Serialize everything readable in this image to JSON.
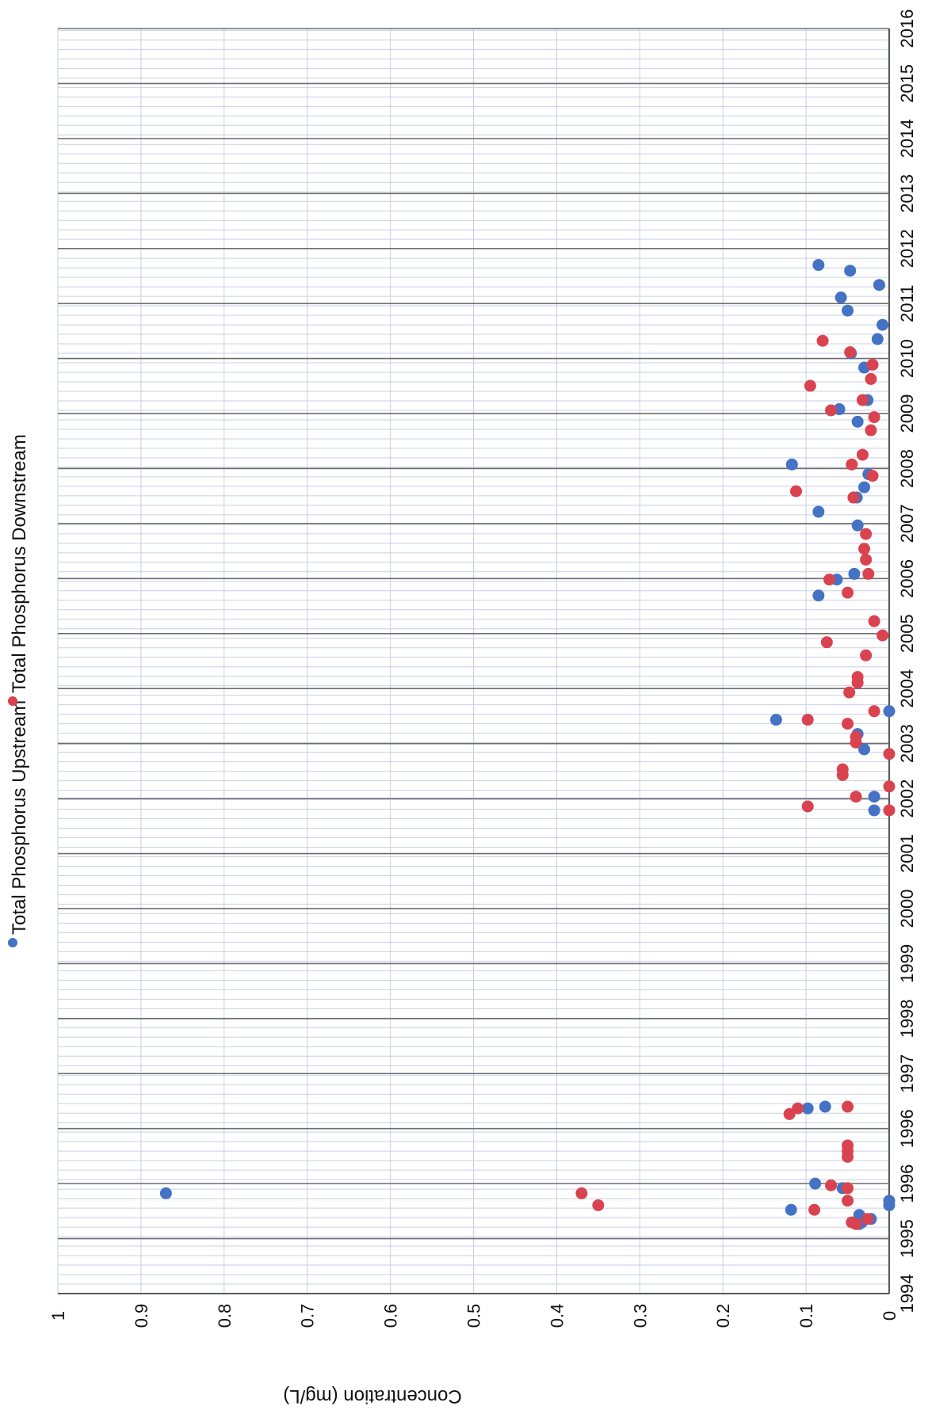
{
  "chart_data": {
    "type": "scatter",
    "orientation": "rotated-90",
    "title": "",
    "xlabel": "",
    "ylabel": "Concentration (mg/L)",
    "ylim": [
      0,
      1
    ],
    "y_ticks": [
      "0",
      "0.1",
      "0.2",
      "0.3",
      "0.4",
      "0.5",
      "0.6",
      "0.7",
      "0.8",
      "0.9",
      "1"
    ],
    "x_tick_labels": [
      "1994",
      "1995",
      "1996",
      "1996",
      "1997",
      "1998",
      "1999",
      "2000",
      "2001",
      "2002",
      "2003",
      "2004",
      "2005",
      "2006",
      "2007",
      "2008",
      "2009",
      "2010",
      "2011",
      "2012",
      "2013",
      "2014",
      "2015",
      "2016"
    ],
    "grid": true,
    "legend_position": "top",
    "colors": {
      "upstream": "#4472c4",
      "downstream": "#d9434f",
      "major_grid": "#6e6e6e",
      "minor_grid": "#c9cfe6"
    },
    "series": [
      {
        "name": "Total Phosphorus Upstream",
        "points": [
          [
            1995.22,
            0.036
          ],
          [
            1995.25,
            0.033
          ],
          [
            1995.31,
            0.022
          ],
          [
            1995.38,
            0.036
          ],
          [
            1995.47,
            0.118
          ],
          [
            1995.55,
            0.0
          ],
          [
            1995.63,
            0.0
          ],
          [
            1995.76,
            0.87
          ],
          [
            1995.85,
            0.056
          ],
          [
            1995.93,
            0.089
          ],
          [
            1997.25,
            0.098
          ],
          [
            1997.28,
            0.077
          ],
          [
            2002.48,
            0.018
          ],
          [
            2002.72,
            0.018
          ],
          [
            2003.55,
            0.03
          ],
          [
            2003.82,
            0.038
          ],
          [
            2004.07,
            0.136
          ],
          [
            2004.22,
            0.0
          ],
          [
            2006.25,
            0.085
          ],
          [
            2006.53,
            0.063
          ],
          [
            2006.63,
            0.042
          ],
          [
            2007.48,
            0.038
          ],
          [
            2007.72,
            0.085
          ],
          [
            2007.97,
            0.039
          ],
          [
            2008.15,
            0.03
          ],
          [
            2008.38,
            0.025
          ],
          [
            2008.55,
            0.117
          ],
          [
            2009.3,
            0.038
          ],
          [
            2009.52,
            0.06
          ],
          [
            2009.68,
            0.026
          ],
          [
            2010.25,
            0.03
          ],
          [
            2010.5,
            0.046
          ],
          [
            2010.75,
            0.014
          ],
          [
            2011.0,
            0.008
          ],
          [
            2011.25,
            0.05
          ],
          [
            2011.48,
            0.058
          ],
          [
            2011.7,
            0.012
          ],
          [
            2011.95,
            0.047
          ],
          [
            2012.05,
            0.085
          ]
        ]
      },
      {
        "name": "Total Phosphorus Downstream",
        "points": [
          [
            1995.22,
            0.04
          ],
          [
            1995.25,
            0.045
          ],
          [
            1995.31,
            0.026
          ],
          [
            1995.47,
            0.09
          ],
          [
            1995.55,
            0.35
          ],
          [
            1995.63,
            0.05
          ],
          [
            1995.76,
            0.37
          ],
          [
            1995.85,
            0.05
          ],
          [
            1995.9,
            0.07
          ],
          [
            1996.4,
            0.05
          ],
          [
            1996.5,
            0.05
          ],
          [
            1996.6,
            0.05
          ],
          [
            1997.15,
            0.12
          ],
          [
            1997.25,
            0.11
          ],
          [
            1997.28,
            0.05
          ],
          [
            2002.48,
            0.0
          ],
          [
            2002.55,
            0.098
          ],
          [
            2002.72,
            0.04
          ],
          [
            2002.9,
            0.0
          ],
          [
            2003.1,
            0.056
          ],
          [
            2003.2,
            0.056
          ],
          [
            2003.47,
            0.0
          ],
          [
            2003.67,
            0.04
          ],
          [
            2003.77,
            0.04
          ],
          [
            2004.0,
            0.05
          ],
          [
            2004.07,
            0.098
          ],
          [
            2004.22,
            0.018
          ],
          [
            2004.55,
            0.048
          ],
          [
            2004.72,
            0.038
          ],
          [
            2004.82,
            0.038
          ],
          [
            2005.2,
            0.028
          ],
          [
            2005.43,
            0.075
          ],
          [
            2005.55,
            0.008
          ],
          [
            2005.8,
            0.018
          ],
          [
            2006.3,
            0.05
          ],
          [
            2006.53,
            0.072
          ],
          [
            2006.63,
            0.025
          ],
          [
            2006.88,
            0.028
          ],
          [
            2007.07,
            0.03
          ],
          [
            2007.33,
            0.028
          ],
          [
            2007.97,
            0.043
          ],
          [
            2008.08,
            0.112
          ],
          [
            2008.35,
            0.02
          ],
          [
            2008.55,
            0.045
          ],
          [
            2008.72,
            0.032
          ],
          [
            2009.15,
            0.022
          ],
          [
            2009.38,
            0.018
          ],
          [
            2009.5,
            0.07
          ],
          [
            2009.68,
            0.032
          ],
          [
            2009.93,
            0.095
          ],
          [
            2010.05,
            0.022
          ],
          [
            2010.3,
            0.02
          ],
          [
            2010.52,
            0.047
          ],
          [
            2010.72,
            0.08
          ]
        ]
      }
    ]
  }
}
